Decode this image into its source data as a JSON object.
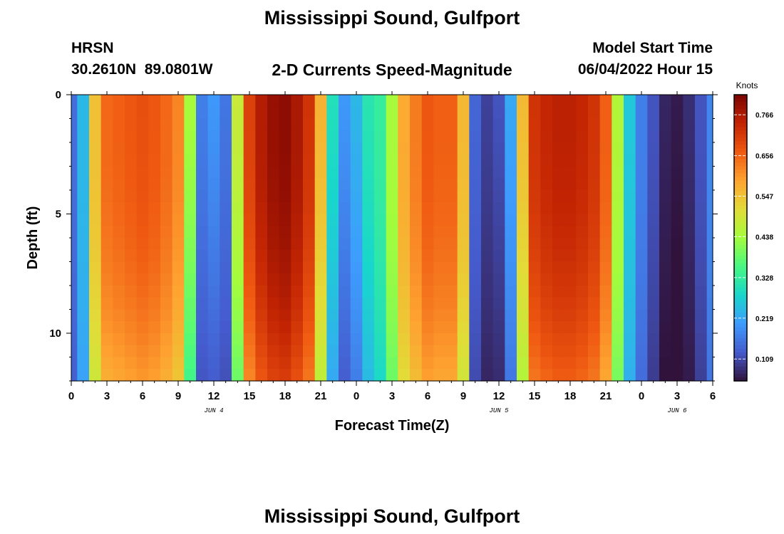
{
  "page": {
    "title": "Mississippi Sound, Gulfport",
    "station_code": "HRSN",
    "station_coords": "30.2610N  89.0801W",
    "subtitle": "2-D Currents Speed-Magnitude",
    "model_start_label": "Model Start Time",
    "model_start_value": "06/04/2022 Hour 15",
    "footer_title": "Mississippi Sound, Gulfport"
  },
  "chart_data": {
    "type": "heatmap",
    "xlabel": "Forecast Time(Z)",
    "ylabel": "Depth (ft)",
    "x_range_hours": [
      0,
      54
    ],
    "y_range_ft": [
      0,
      12
    ],
    "x_tick_labels": [
      "0",
      "3",
      "6",
      "9",
      "12",
      "15",
      "18",
      "21",
      "0",
      "3",
      "6",
      "9",
      "12",
      "15",
      "18",
      "21",
      "0",
      "3",
      "6"
    ],
    "y_tick_labels": [
      "0",
      "5",
      "10"
    ],
    "date_labels": [
      {
        "label": "JUN 4",
        "hour": 12
      },
      {
        "label": "JUN 5",
        "hour": 36
      },
      {
        "label": "JUN 6",
        "hour": 51
      }
    ],
    "colorbar": {
      "title": "Knots",
      "min": 0.05,
      "max": 0.82,
      "tick_labels": [
        "0.766",
        "0.656",
        "0.547",
        "0.438",
        "0.328",
        "0.219",
        "0.109"
      ]
    },
    "surface_speed_knots_by_hour": [
      0.15,
      0.24,
      0.55,
      0.65,
      0.66,
      0.67,
      0.68,
      0.67,
      0.65,
      0.62,
      0.44,
      0.17,
      0.2,
      0.16,
      0.48,
      0.7,
      0.76,
      0.79,
      0.8,
      0.77,
      0.72,
      0.57,
      0.3,
      0.2,
      0.24,
      0.31,
      0.33,
      0.44,
      0.58,
      0.63,
      0.67,
      0.66,
      0.66,
      0.56,
      0.14,
      0.1,
      0.12,
      0.22,
      0.56,
      0.72,
      0.74,
      0.75,
      0.75,
      0.74,
      0.72,
      0.66,
      0.45,
      0.26,
      0.17,
      0.12,
      0.07,
      0.06,
      0.08,
      0.12,
      0.18
    ],
    "zero_crossing_hours": [
      11.9,
      23.2,
      35.9,
      50.8
    ],
    "notes": "Speed decreases with depth; low-speed slack bands near the zero crossings."
  }
}
